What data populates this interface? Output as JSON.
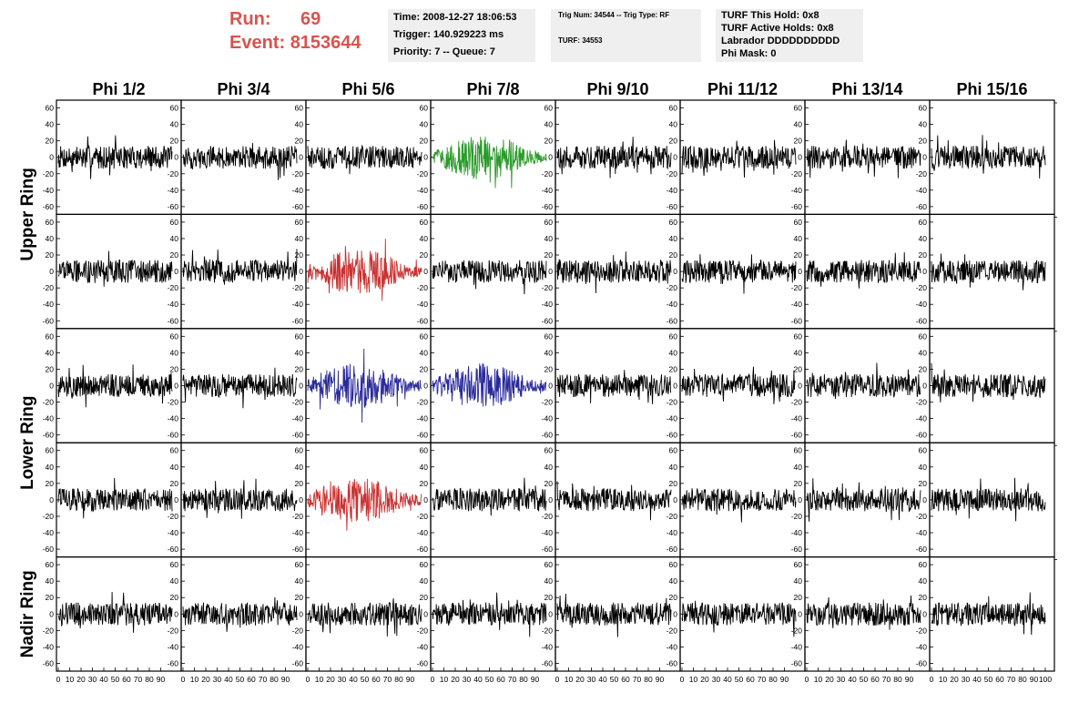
{
  "header": {
    "run_label": "Run:",
    "run_value": "69",
    "event_label": "Event:",
    "event_value": "8153644"
  },
  "info": {
    "time": "Time: 2008-12-27 18:06:53",
    "trigger": "Trigger: 140.929223 ms",
    "priority": "Priority: 7 -- Queue: 7",
    "trig_num": "Trig Num: 34544 -- Trig Type: RF",
    "turf": "TURF: 34553",
    "turf_this_hold": "TURF This Hold: 0x8",
    "turf_active_holds": "TURF Active Holds: 0x8",
    "labrador": "Labrador DDDDDDDDDD",
    "phi_mask": "Phi Mask: 0"
  },
  "columns": [
    "Phi 1/2",
    "Phi 3/4",
    "Phi 5/6",
    "Phi 7/8",
    "Phi 9/10",
    "Phi 11/12",
    "Phi 13/14",
    "Phi 15/16"
  ],
  "row_labels": [
    {
      "label": "Upper Ring"
    },
    {
      "label": "Lower Ring"
    },
    {
      "label": "Nadir Ring"
    }
  ],
  "y_ticks": [
    "60",
    "40",
    "20",
    "0",
    "-20",
    "-40",
    "-60"
  ],
  "x_ticks": [
    "0",
    "10",
    "20",
    "30",
    "40",
    "50",
    "60",
    "70",
    "80",
    "90",
    "100"
  ],
  "chart_data": {
    "type": "line",
    "x_range": [
      0,
      100
    ],
    "ylim": [
      -65,
      65
    ],
    "trace_colors": {
      "normal": "#000000",
      "green": "#2a9a2a",
      "red": "#c83232",
      "blue": "#2a2a9a"
    },
    "highlighted": [
      {
        "row": 0,
        "col": 3,
        "color": "green"
      },
      {
        "row": 1,
        "col": 2,
        "color": "red"
      },
      {
        "row": 2,
        "col": 2,
        "color": "blue"
      },
      {
        "row": 2,
        "col": 3,
        "color": "blue"
      },
      {
        "row": 3,
        "col": 2,
        "color": "red"
      }
    ]
  }
}
